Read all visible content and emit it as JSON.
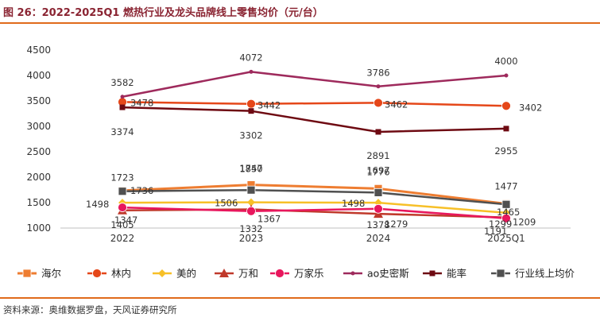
{
  "figure_title": "图 26：2022-2025Q1 燃热行业及龙头品牌线上零售均价（元/台）",
  "source": "资料来源：奥维数据罗盘，天风证券研究所",
  "colors": {
    "accent": "#e06a1b",
    "title": "#8a2432"
  },
  "chart_data": {
    "type": "line",
    "title": "",
    "xlabel": "",
    "ylabel": "",
    "ylim": [
      1000,
      4500
    ],
    "yticks": [
      1000,
      1500,
      2000,
      2500,
      3000,
      3500,
      4000,
      4500
    ],
    "grid": false,
    "legend_position": "bottom",
    "categories": [
      "2022",
      "2023",
      "2024",
      "2025Q1"
    ],
    "series": [
      {
        "name": "海尔",
        "values": [
          1736,
          1850,
          1776,
          1477
        ],
        "labels": [
          "1736",
          "1850",
          "1776",
          "1477"
        ],
        "color": "#ee7d31",
        "marker": "square",
        "stroke": 3
      },
      {
        "name": "林内",
        "values": [
          3478,
          3442,
          3462,
          3402
        ],
        "labels": [
          "3478",
          "3442",
          "3462",
          "3402"
        ],
        "color": "#e54719",
        "marker": "circle",
        "stroke": 2.5
      },
      {
        "name": "美的",
        "values": [
          1498,
          1506,
          1498,
          1299
        ],
        "labels": [
          "1498",
          "1506",
          "1498",
          "1299"
        ],
        "color": "#f7c028",
        "marker": "diamond",
        "stroke": 2.5
      },
      {
        "name": "万和",
        "values": [
          1347,
          1367,
          1279,
          1209
        ],
        "labels": [
          "1347",
          "1367",
          "1279",
          "1209"
        ],
        "color": "#c0392b",
        "marker": "triangle",
        "stroke": 2.5
      },
      {
        "name": "万家乐",
        "values": [
          1405,
          1332,
          1378,
          1191
        ],
        "labels": [
          "1405",
          "1332",
          "1378",
          "1191"
        ],
        "color": "#e8175d",
        "marker": "circle",
        "stroke": 2.5
      },
      {
        "name": "ao史密斯",
        "values": [
          3582,
          4072,
          3786,
          4000
        ],
        "labels": [
          "3582",
          "4072",
          "3786",
          "4000"
        ],
        "color": "#9e2a5c",
        "marker": "dot",
        "stroke": 2.5
      },
      {
        "name": "能率",
        "values": [
          3374,
          3302,
          2891,
          2955
        ],
        "labels": [
          "3374",
          "3302",
          "2891",
          "2955"
        ],
        "color": "#6e0a12",
        "marker": "square-small",
        "stroke": 2.5
      },
      {
        "name": "行业线上均价",
        "values": [
          1723,
          1747,
          1697,
          1465
        ],
        "labels": [
          "1723",
          "1747",
          "1697",
          "1465"
        ],
        "color": "#505050",
        "marker": "square",
        "stroke": 2.5
      }
    ]
  }
}
